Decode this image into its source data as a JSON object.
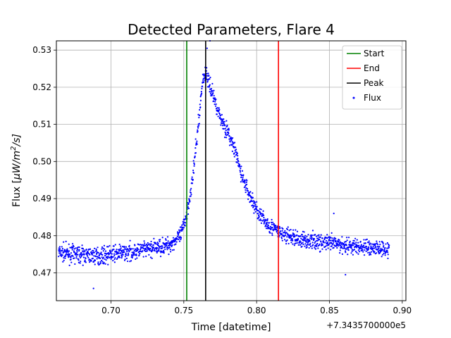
{
  "chart_data": {
    "type": "scatter",
    "title": "Detected Parameters, Flare 4",
    "xlabel": "Time [datetime]",
    "ylabel_prefix": "Flux [",
    "ylabel_unit": "μW/m",
    "ylabel_exp": "2",
    "ylabel_suffix": "/s]",
    "x_offset_label": "+7.3435700000e5",
    "xlim": [
      0.6625,
      0.9025
    ],
    "ylim": [
      0.4625,
      0.5325
    ],
    "x_ticks": [
      0.7,
      0.75,
      0.8,
      0.85,
      0.9
    ],
    "x_tick_labels": [
      "0.70",
      "0.75",
      "0.80",
      "0.85",
      "0.90"
    ],
    "y_ticks": [
      0.47,
      0.48,
      0.49,
      0.5,
      0.51,
      0.52,
      0.53
    ],
    "y_tick_labels": [
      "0.47",
      "0.48",
      "0.49",
      "0.50",
      "0.51",
      "0.52",
      "0.53"
    ],
    "grid": true,
    "legend_position": "upper right",
    "legend": [
      {
        "label": "Start",
        "kind": "line",
        "color": "#008000"
      },
      {
        "label": "End",
        "kind": "line",
        "color": "#ff0000"
      },
      {
        "label": "Peak",
        "kind": "line",
        "color": "#000000"
      },
      {
        "label": "Flux",
        "kind": "marker",
        "color": "#0000ff"
      }
    ],
    "vlines": [
      {
        "name": "start",
        "x": 0.752,
        "color": "#008000"
      },
      {
        "name": "end",
        "x": 0.815,
        "color": "#ff0000"
      },
      {
        "name": "peak",
        "x": 0.765,
        "color": "#000000"
      }
    ],
    "flux_series": {
      "name": "Flux",
      "color": "#0000ff",
      "x_range": [
        0.664,
        0.891
      ],
      "point_count": 1600,
      "profile": {
        "x": [
          0.664,
          0.69,
          0.72,
          0.74,
          0.748,
          0.752,
          0.756,
          0.76,
          0.763,
          0.765,
          0.77,
          0.775,
          0.78,
          0.785,
          0.79,
          0.795,
          0.8,
          0.805,
          0.81,
          0.815,
          0.82,
          0.83,
          0.85,
          0.87,
          0.891
        ],
        "y": [
          0.4755,
          0.4745,
          0.476,
          0.4775,
          0.48,
          0.486,
          0.495,
          0.51,
          0.522,
          0.524,
          0.518,
          0.512,
          0.508,
          0.503,
          0.496,
          0.491,
          0.487,
          0.484,
          0.4825,
          0.481,
          0.48,
          0.479,
          0.478,
          0.477,
          0.4765
        ]
      },
      "scatter_amplitude": 0.0018,
      "outliers": [
        {
          "x": 0.688,
          "y": 0.4658
        },
        {
          "x": 0.768,
          "y": 0.5325
        },
        {
          "x": 0.766,
          "y": 0.5305
        },
        {
          "x": 0.853,
          "y": 0.486
        },
        {
          "x": 0.861,
          "y": 0.4695
        }
      ]
    }
  }
}
